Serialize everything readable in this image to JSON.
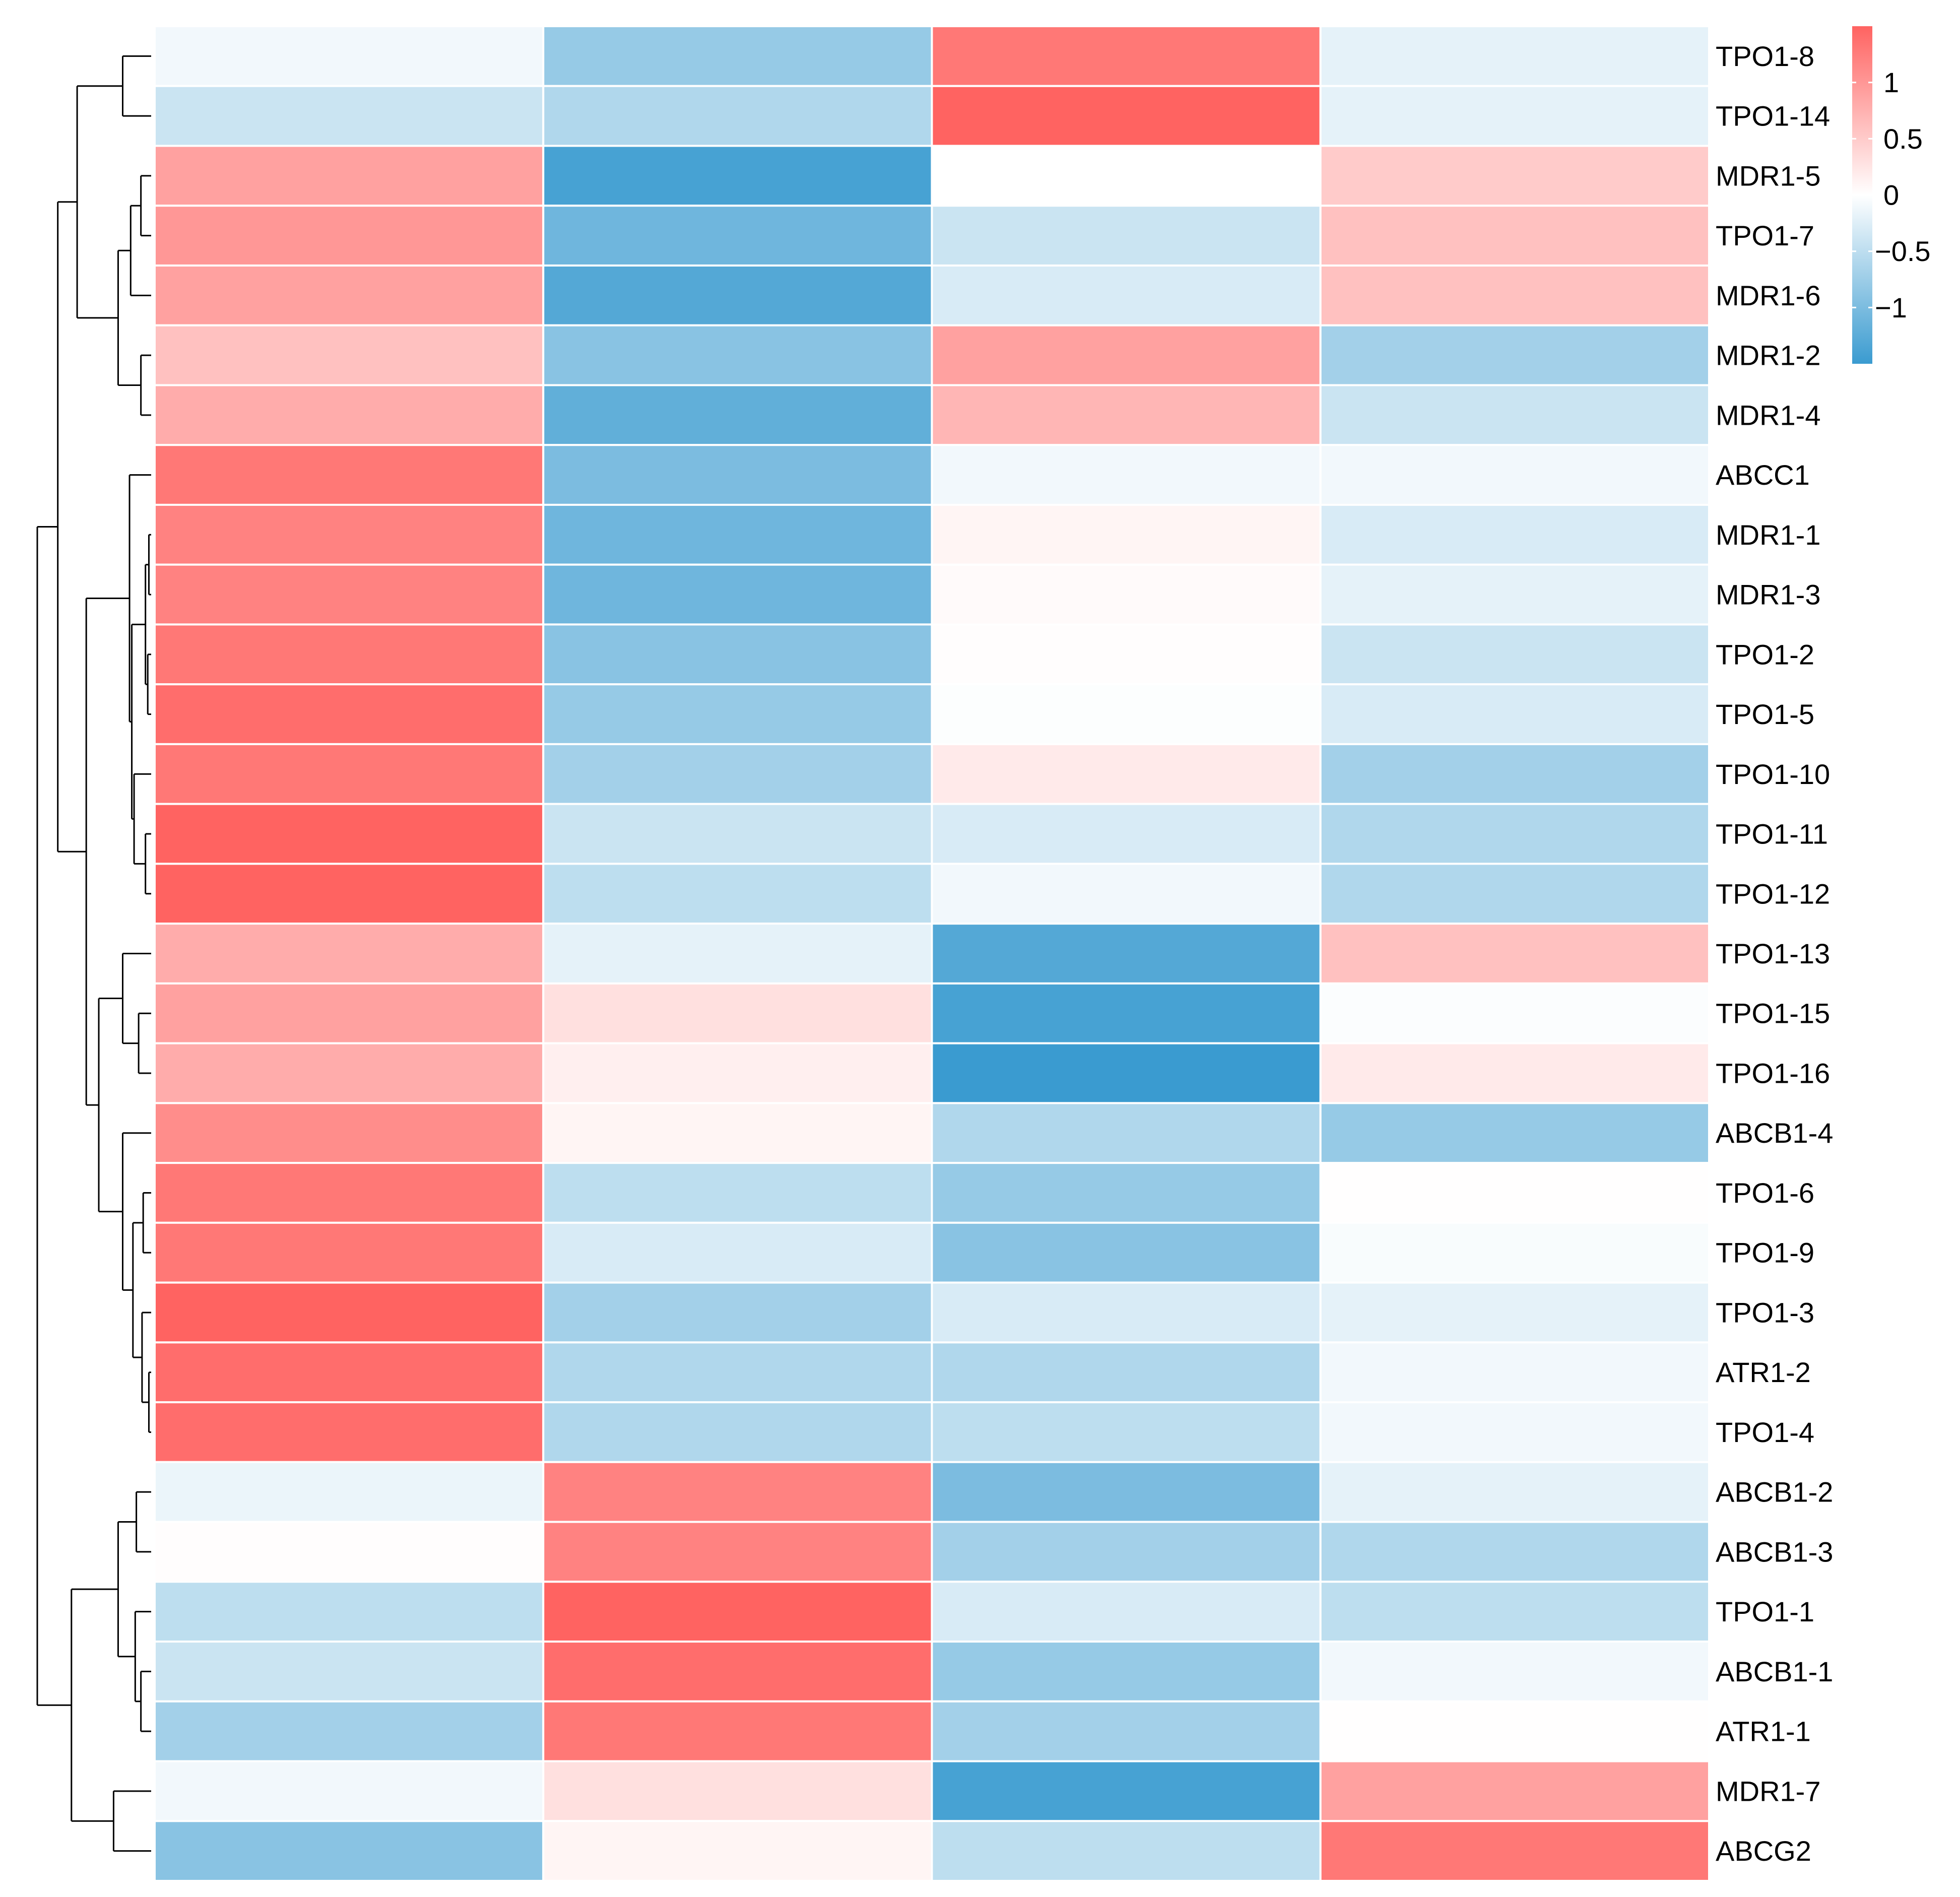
{
  "chart_data": {
    "type": "heatmap",
    "title": "",
    "xlabel": "",
    "ylabel": "",
    "column_count": 4,
    "rows": [
      "TPO1-8",
      "TPO1-14",
      "MDR1-5",
      "TPO1-7",
      "MDR1-6",
      "MDR1-2",
      "MDR1-4",
      "ABCC1",
      "MDR1-1",
      "MDR1-3",
      "TPO1-2",
      "TPO1-5",
      "TPO1-10",
      "TPO1-11",
      "TPO1-12",
      "TPO1-13",
      "TPO1-15",
      "TPO1-16",
      "ABCB1-4",
      "TPO1-6",
      "TPO1-9",
      "TPO1-3",
      "ATR1-2",
      "TPO1-4",
      "ABCB1-2",
      "ABCB1-3",
      "TPO1-1",
      "ABCB1-1",
      "ATR1-1",
      "MDR1-7",
      "ABCG2"
    ],
    "values": [
      [
        -0.1,
        -0.8,
        1.3,
        -0.2
      ],
      [
        -0.4,
        -0.6,
        1.5,
        -0.2
      ],
      [
        0.9,
        -1.4,
        0.0,
        0.5
      ],
      [
        1.0,
        -1.1,
        -0.4,
        0.6
      ],
      [
        0.9,
        -1.3,
        -0.3,
        0.6
      ],
      [
        0.6,
        -0.9,
        0.9,
        -0.7
      ],
      [
        0.8,
        -1.2,
        0.7,
        -0.4
      ],
      [
        1.3,
        -1.0,
        -0.1,
        -0.1
      ],
      [
        1.2,
        -1.1,
        0.1,
        -0.3
      ],
      [
        1.2,
        -1.1,
        0.05,
        -0.2
      ],
      [
        1.3,
        -0.9,
        0.02,
        -0.4
      ],
      [
        1.4,
        -0.8,
        -0.02,
        -0.3
      ],
      [
        1.3,
        -0.7,
        0.2,
        -0.7
      ],
      [
        1.5,
        -0.4,
        -0.3,
        -0.6
      ],
      [
        1.5,
        -0.5,
        -0.1,
        -0.6
      ],
      [
        0.8,
        -0.2,
        -1.3,
        0.6
      ],
      [
        0.9,
        0.3,
        -1.4,
        -0.03
      ],
      [
        0.8,
        0.15,
        -1.5,
        0.2
      ],
      [
        1.1,
        0.1,
        -0.6,
        -0.8
      ],
      [
        1.3,
        -0.5,
        -0.8,
        0.01
      ],
      [
        1.3,
        -0.3,
        -0.9,
        -0.05
      ],
      [
        1.5,
        -0.7,
        -0.3,
        -0.2
      ],
      [
        1.4,
        -0.6,
        -0.6,
        -0.1
      ],
      [
        1.4,
        -0.6,
        -0.5,
        -0.1
      ],
      [
        -0.15,
        1.2,
        -1.0,
        -0.2
      ],
      [
        0.02,
        1.2,
        -0.7,
        -0.6
      ],
      [
        -0.5,
        1.5,
        -0.3,
        -0.5
      ],
      [
        -0.4,
        1.4,
        -0.8,
        -0.1
      ],
      [
        -0.7,
        1.3,
        -0.7,
        0.01
      ],
      [
        -0.1,
        0.3,
        -1.4,
        0.9
      ],
      [
        -0.9,
        0.1,
        -0.5,
        1.3
      ]
    ],
    "colorscale": {
      "min": -1.5,
      "max": 1.5,
      "low_color": "#3A9BD0",
      "mid_color": "#FFFFFF",
      "high_color": "#FF6361",
      "ticks": [
        {
          "value": 1,
          "label": "1"
        },
        {
          "value": 0.5,
          "label": "0.5"
        },
        {
          "value": 0,
          "label": "0"
        },
        {
          "value": -0.5,
          "label": "−0.5"
        },
        {
          "value": -1,
          "label": "−1"
        }
      ]
    },
    "dendrogram": {
      "side": "left",
      "tree": [
        [
          [
            [
              0,
              1
            ],
            [
              [
                [
                  2,
                  3
                ],
                4
              ],
              [
                5,
                6
              ]
            ]
          ],
          [
            [
              7,
              [
                [
                  [
                    8,
                    9
                  ],
                  [
                    10,
                    11
                  ]
                ],
                [
                  12,
                  [
                    13,
                    14
                  ]
                ]
              ]
            ],
            [
              [
                15,
                [
                  16,
                  17
                ]
              ],
              [
                18,
                [
                  [
                    19,
                    20
                  ],
                  [
                    21,
                    [
                      22,
                      23
                    ]
                  ]
                ]
              ]
            ]
          ]
        ],
        [
          [
            [
              24,
              25
            ],
            [
              26,
              [
                27,
                28
              ]
            ]
          ],
          [
            29,
            30
          ]
        ]
      ],
      "merge_heights": {
        "0-1": 0.25,
        "2-3": 0.09,
        "2-4": 0.18,
        "5-6": 0.09,
        "2-6": 0.29,
        "0-6": 0.65,
        "8-9": 0.02,
        "10-11": 0.03,
        "8-11": 0.05,
        "13-14": 0.05,
        "12-14": 0.15,
        "8-14": 0.17,
        "7-14": 0.19,
        "16-17": 0.11,
        "15-17": 0.25,
        "19-20": 0.07,
        "22-23": 0.02,
        "21-23": 0.08,
        "19-23": 0.16,
        "18-23": 0.25,
        "15-23": 0.46,
        "7-23": 0.57,
        "0-23": 0.82,
        "24-25": 0.13,
        "27-28": 0.09,
        "26-28": 0.14,
        "24-28": 0.29,
        "29-30": 0.33,
        "24-30": 0.7,
        "0-30": 1.0
      }
    }
  }
}
